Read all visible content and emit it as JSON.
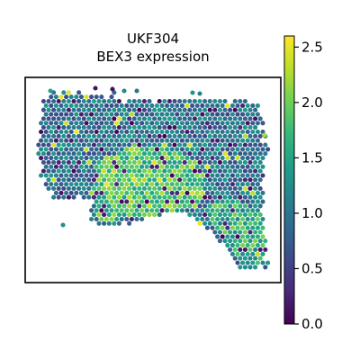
{
  "chart_data": {
    "type": "scatter",
    "subtype": "spatial hexagonal spot map (Visium-style)",
    "title_line1": "UKF304",
    "title_line2": "BEX3 expression",
    "xlabel": "",
    "ylabel": "",
    "axes_ticks_visible": false,
    "grid": false,
    "colormap": "viridis",
    "colorbar": {
      "label": "",
      "range": [
        0.0,
        2.6
      ],
      "ticks": [
        0.0,
        0.5,
        1.0,
        1.5,
        2.0,
        2.5
      ],
      "tick_labels": [
        "0.0",
        "0.5",
        "1.0",
        "1.5",
        "2.0",
        "2.5"
      ]
    },
    "spot_expression_summary": {
      "background_tissue": 1.0,
      "high_expression_region_lower_left": 2.0,
      "tail_region_lower_right": 1.7,
      "minimum": 0.0,
      "maximum": 2.5
    }
  }
}
